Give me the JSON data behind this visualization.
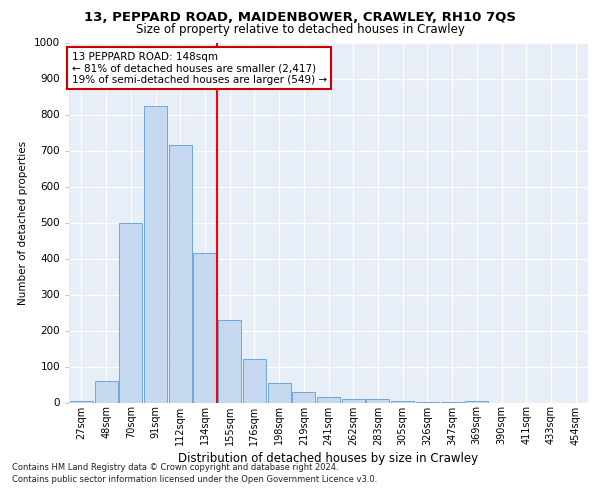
{
  "title1": "13, PEPPARD ROAD, MAIDENBOWER, CRAWLEY, RH10 7QS",
  "title2": "Size of property relative to detached houses in Crawley",
  "xlabel": "Distribution of detached houses by size in Crawley",
  "ylabel": "Number of detached properties",
  "bar_labels": [
    "27sqm",
    "48sqm",
    "70sqm",
    "91sqm",
    "112sqm",
    "134sqm",
    "155sqm",
    "176sqm",
    "198sqm",
    "219sqm",
    "241sqm",
    "262sqm",
    "283sqm",
    "305sqm",
    "326sqm",
    "347sqm",
    "369sqm",
    "390sqm",
    "411sqm",
    "433sqm",
    "454sqm"
  ],
  "bar_values": [
    5,
    60,
    500,
    825,
    715,
    415,
    230,
    120,
    55,
    30,
    15,
    10,
    10,
    5,
    2,
    2,
    5,
    0,
    0,
    0,
    0
  ],
  "bar_color": "#c5d8f0",
  "bar_edge_color": "#5a9fd4",
  "red_line_x": 5.5,
  "annotation_text": "13 PEPPARD ROAD: 148sqm\n← 81% of detached houses are smaller (2,417)\n19% of semi-detached houses are larger (549) →",
  "annotation_box_color": "#ffffff",
  "annotation_box_edge": "#cc0000",
  "footer1": "Contains HM Land Registry data © Crown copyright and database right 2024.",
  "footer2": "Contains public sector information licensed under the Open Government Licence v3.0.",
  "bg_color": "#e8eef7",
  "ylim": [
    0,
    1000
  ],
  "yticks": [
    0,
    100,
    200,
    300,
    400,
    500,
    600,
    700,
    800,
    900,
    1000
  ],
  "title1_fontsize": 9.5,
  "title2_fontsize": 8.5,
  "ylabel_fontsize": 7.5,
  "xlabel_fontsize": 8.5,
  "tick_fontsize": 7,
  "footer_fontsize": 6.0
}
